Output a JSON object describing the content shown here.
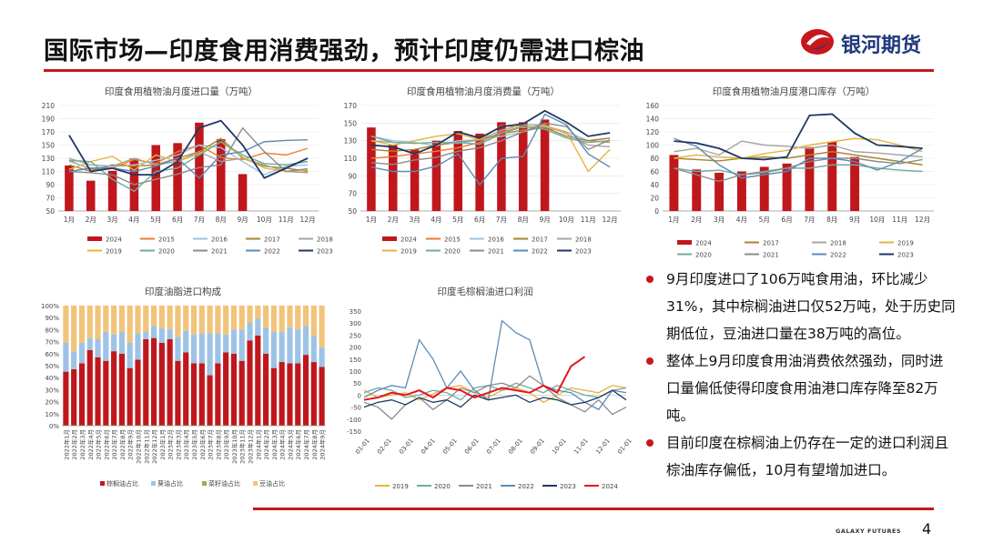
{
  "header": {
    "title": "国际市场—印度食用消费强劲，预计印度仍需进口棕油",
    "brand": "银河期货",
    "footer_brand": "GALAXY FUTURES",
    "page_number": "4"
  },
  "colors": {
    "accent": "#c8161d",
    "brand_blue": "#1f3a7a"
  },
  "bullets": [
    "9月印度进口了106万吨食用油，环比减少31%，其中棕榈油进口仅52万吨，处于历史同期低位，豆油进口量在38万吨的高位。",
    "整体上9月印度食用油消费依然强劲，同时进口量偏低使得印度食用油港口库存降至82万吨。",
    "目前印度在棕榈油上仍存在一定的进口利润且棕油库存偏低，10月有望增加进口。"
  ],
  "chart_data": [
    {
      "type": "bar",
      "title": "印度食用植物油月度进口量（万吨）",
      "categories": [
        "1月",
        "2月",
        "3月",
        "4月",
        "5月",
        "6月",
        "7月",
        "8月",
        "9月",
        "10月",
        "11月",
        "12月"
      ],
      "ylim": [
        50,
        210
      ],
      "yticks": [
        "50",
        "70",
        "90",
        "110",
        "130",
        "150",
        "170",
        "190",
        "210"
      ],
      "bar_series": {
        "name": "2024",
        "color": "#c0171d",
        "values": [
          119,
          96,
          111,
          130,
          150,
          153,
          184,
          159,
          106
        ]
      },
      "line_series": [
        {
          "name": "2015",
          "color": "#ed7d31",
          "values": [
            127,
            113,
            115,
            128,
            122,
            140,
            150,
            131,
            128,
            138,
            135,
            145
          ]
        },
        {
          "name": "2016",
          "color": "#9dc3e6",
          "values": [
            125,
            115,
            118,
            120,
            127,
            135,
            150,
            146,
            125,
            105,
            118,
            120
          ]
        },
        {
          "name": "2017",
          "color": "#a9862c",
          "values": [
            120,
            110,
            120,
            118,
            120,
            130,
            140,
            160,
            130,
            118,
            115,
            110
          ]
        },
        {
          "name": "2018",
          "color": "#a5a5a5",
          "values": [
            130,
            120,
            118,
            130,
            120,
            125,
            140,
            125,
            130,
            120,
            110,
            108
          ]
        },
        {
          "name": "2019",
          "color": "#e5b43c",
          "values": [
            113,
            125,
            133,
            112,
            135,
            125,
            137,
            155,
            132,
            115,
            110,
            112
          ]
        },
        {
          "name": "2020",
          "color": "#70ad9f",
          "values": [
            127,
            125,
            98,
            80,
            110,
            115,
            135,
            155,
            135,
            122,
            120,
            125
          ]
        },
        {
          "name": "2021",
          "color": "#8c8c8c",
          "values": [
            110,
            108,
            105,
            90,
            98,
            106,
            116,
            120,
            176,
            140,
            110,
            114
          ]
        },
        {
          "name": "2022",
          "color": "#5b8bb8",
          "values": [
            110,
            115,
            115,
            110,
            118,
            130,
            100,
            135,
            140,
            155,
            157,
            158
          ]
        },
        {
          "name": "2023",
          "color": "#1f3864",
          "values": [
            165,
            110,
            115,
            105,
            105,
            125,
            176,
            187,
            150,
            100,
            115,
            130
          ]
        }
      ],
      "legend": [
        "2024",
        "2015",
        "2016",
        "2017",
        "2018",
        "2019",
        "2020",
        "2021",
        "2022",
        "2023"
      ]
    },
    {
      "type": "bar",
      "title": "印度食用植物油月度消费量（万吨）",
      "categories": [
        "1月",
        "2月",
        "3月",
        "4月",
        "5月",
        "6月",
        "7月",
        "8月",
        "9月",
        "10月",
        "11月",
        "12月"
      ],
      "ylim": [
        50,
        170
      ],
      "yticks": [
        "50",
        "70",
        "90",
        "110",
        "130",
        "150",
        "170"
      ],
      "bar_series": {
        "name": "2024",
        "color": "#c0171d",
        "values": [
          145,
          125,
          120,
          130,
          141,
          138,
          151,
          151,
          154
        ]
      },
      "line_series": [
        {
          "name": "2015",
          "color": "#ed7d31",
          "values": [
            110,
            112,
            115,
            118,
            122,
            128,
            140,
            146,
            145,
            140,
            130,
            128
          ]
        },
        {
          "name": "2016",
          "color": "#9dc3e6",
          "values": [
            135,
            130,
            128,
            124,
            130,
            131,
            135,
            140,
            146,
            140,
            130,
            133
          ]
        },
        {
          "name": "2017",
          "color": "#a9862c",
          "values": [
            120,
            118,
            120,
            125,
            128,
            131,
            138,
            142,
            145,
            135,
            130,
            133
          ]
        },
        {
          "name": "2018",
          "color": "#a5a5a5",
          "values": [
            130,
            128,
            127,
            128,
            127,
            131,
            142,
            148,
            148,
            138,
            125,
            123
          ]
        },
        {
          "name": "2019",
          "color": "#e5b43c",
          "values": [
            130,
            125,
            130,
            135,
            138,
            131,
            147,
            145,
            147,
            140,
            95,
            120
          ]
        },
        {
          "name": "2020",
          "color": "#70ad9f",
          "values": [
            135,
            128,
            127,
            128,
            128,
            126,
            138,
            146,
            143,
            133,
            128,
            130
          ]
        },
        {
          "name": "2021",
          "color": "#8c8c8c",
          "values": [
            105,
            103,
            108,
            111,
            118,
            122,
            130,
            140,
            150,
            146,
            120,
            131
          ]
        },
        {
          "name": "2022",
          "color": "#5b8bb8",
          "values": [
            100,
            95,
            95,
            101,
            115,
            80,
            110,
            112,
            160,
            148,
            115,
            100
          ]
        },
        {
          "name": "2023",
          "color": "#1f3864",
          "values": [
            125,
            123,
            115,
            125,
            140,
            133,
            146,
            149,
            164,
            151,
            135,
            139
          ]
        }
      ],
      "legend": [
        "2024",
        "2015",
        "2016",
        "2017",
        "2018",
        "2019",
        "2020",
        "2021",
        "2022",
        "2023"
      ]
    },
    {
      "type": "bar",
      "title": "印度食用植物油月度港口库存（万吨）",
      "categories": [
        "1月",
        "2月",
        "3月",
        "4月",
        "5月",
        "6月",
        "7月",
        "8月",
        "9月",
        "10月",
        "11月",
        "12月"
      ],
      "ylim": [
        0,
        160
      ],
      "yticks": [
        "0",
        "20",
        "40",
        "60",
        "80",
        "100",
        "120",
        "140",
        "160"
      ],
      "bar_series": {
        "name": "2024",
        "color": "#c0171d",
        "values": [
          85,
          63,
          58,
          60,
          67,
          72,
          97,
          105,
          82
        ]
      },
      "line_series": [
        {
          "name": "2017",
          "color": "#a9862c",
          "values": [
            80,
            78,
            76,
            80,
            82,
            80,
            85,
            90,
            85,
            80,
            75,
            70
          ]
        },
        {
          "name": "2018",
          "color": "#a5a5a5",
          "values": [
            90,
            95,
            85,
            106,
            100,
            98,
            95,
            100,
            90,
            88,
            85,
            82
          ]
        },
        {
          "name": "2019",
          "color": "#e5b43c",
          "values": [
            80,
            85,
            82,
            80,
            87,
            92,
            100,
            105,
            110,
            108,
            100,
            90
          ]
        },
        {
          "name": "2020",
          "color": "#70ad9f",
          "values": [
            65,
            60,
            62,
            55,
            60,
            65,
            65,
            70,
            70,
            65,
            62,
            60
          ]
        },
        {
          "name": "2021",
          "color": "#8c8c8c",
          "values": [
            65,
            55,
            45,
            55,
            58,
            65,
            75,
            80,
            80,
            75,
            72,
            78
          ]
        },
        {
          "name": "2022",
          "color": "#5b8bb8",
          "values": [
            110,
            98,
            70,
            50,
            55,
            60,
            80,
            80,
            75,
            62,
            75,
            95
          ]
        },
        {
          "name": "2023",
          "color": "#1f3864",
          "values": [
            106,
            103,
            95,
            80,
            78,
            82,
            145,
            147,
            118,
            100,
            98,
            95
          ]
        }
      ],
      "legend": [
        "2024",
        "2017",
        "2018",
        "2019",
        "2020",
        "2021",
        "2022",
        "2023"
      ]
    },
    {
      "type": "bar",
      "stacked": true,
      "title": "印度油脂进口构成",
      "categories": [
        "2022年1月",
        "2022年2月",
        "2022年3月",
        "2022年4月",
        "2022年5月",
        "2022年6月",
        "2022年7月",
        "2022年8月",
        "2022年9月",
        "2022年10月",
        "2022年11月",
        "2022年12月",
        "2023年1月",
        "2023年2月",
        "2023年3月",
        "2023年4月",
        "2023年5月",
        "2023年6月",
        "2023年7月",
        "2023年8月",
        "2023年9月",
        "2023年10月",
        "2023年11月",
        "2023年12月",
        "2024年1月",
        "2024年2月",
        "2024年3月",
        "2024年4月",
        "2024年5月",
        "2024年6月",
        "2024年7月",
        "2024年8月",
        "2024年9月"
      ],
      "ylim": [
        0,
        100
      ],
      "yticks": [
        "0%",
        "10%",
        "20%",
        "30%",
        "40%",
        "50%",
        "60%",
        "70%",
        "80%",
        "90%",
        "100%"
      ],
      "series": [
        {
          "name": "棕榈油占比",
          "color": "#c0171d",
          "values": [
            45,
            47,
            52,
            63,
            57,
            54,
            62,
            60,
            48,
            55,
            72,
            73,
            69,
            72,
            54,
            61,
            52,
            52,
            42,
            52,
            61,
            60,
            54,
            71,
            75,
            60,
            48,
            53,
            52,
            52,
            59,
            53,
            49
          ]
        },
        {
          "name": "葵油占比",
          "color": "#9dc3e6",
          "values": [
            24,
            15,
            17,
            10,
            15,
            24,
            14,
            18,
            21,
            22,
            6,
            10,
            12,
            8,
            20,
            18,
            24,
            25,
            35,
            25,
            15,
            20,
            26,
            15,
            14,
            22,
            30,
            25,
            30,
            28,
            24,
            22,
            16
          ]
        },
        {
          "name": "菜籽油占比",
          "color": "#a4a65b",
          "values": [
            0,
            0,
            0,
            0,
            0,
            0,
            0,
            0,
            0,
            0,
            0,
            0,
            0,
            0,
            0,
            0,
            0,
            0,
            0,
            0,
            0,
            0,
            0,
            0,
            0,
            0,
            0,
            0,
            0,
            0,
            0,
            0,
            0
          ]
        },
        {
          "name": "豆油占比",
          "color": "#f2c37a",
          "values": [
            31,
            38,
            31,
            27,
            28,
            22,
            24,
            22,
            31,
            23,
            22,
            17,
            19,
            20,
            26,
            21,
            24,
            23,
            23,
            23,
            24,
            20,
            20,
            14,
            11,
            18,
            22,
            22,
            18,
            20,
            17,
            25,
            35
          ]
        }
      ],
      "legend": [
        "棕榈油占比",
        "葵油占比",
        "菜籽油占比",
        "豆油占比"
      ]
    },
    {
      "type": "line",
      "title": "印度毛棕榈油进口利润",
      "ylim": [
        -150,
        350
      ],
      "yticks": [
        "-150",
        "-100",
        "-50",
        "0",
        "50",
        "100",
        "150",
        "200",
        "250",
        "300",
        "350"
      ],
      "x_labels": [
        "01-01",
        "02-01",
        "03-01",
        "04-01",
        "05-01",
        "06-01",
        "07-01",
        "08-01",
        "09-01",
        "10-01",
        "11-01",
        "12-01",
        "01-01"
      ],
      "series": [
        {
          "name": "2019",
          "color": "#e5b43c",
          "values": [
            20,
            -10,
            0,
            10,
            -20,
            5,
            30,
            40,
            10,
            -10,
            20,
            30,
            10,
            -30,
            0,
            30,
            20,
            10,
            40,
            30
          ]
        },
        {
          "name": "2020",
          "color": "#70ad9f",
          "values": [
            10,
            30,
            20,
            -10,
            0,
            20,
            10,
            -20,
            30,
            40,
            20,
            50,
            30,
            10,
            40,
            20,
            0,
            -10,
            20,
            30
          ]
        },
        {
          "name": "2021",
          "color": "#8c8c8c",
          "values": [
            -30,
            -50,
            -100,
            -40,
            -10,
            -60,
            -20,
            30,
            10,
            40,
            50,
            30,
            80,
            40,
            -10,
            -40,
            -70,
            -20,
            -80,
            -50
          ]
        },
        {
          "name": "2022",
          "color": "#5b8bb8",
          "values": [
            -10,
            20,
            40,
            30,
            230,
            150,
            30,
            100,
            20,
            -20,
            310,
            260,
            230,
            40,
            20,
            10,
            -30,
            -60,
            20,
            10
          ]
        },
        {
          "name": "2023",
          "color": "#1f3864",
          "values": [
            -50,
            -30,
            -20,
            -40,
            -10,
            -30,
            -20,
            -50,
            0,
            -20,
            -10,
            0,
            -30,
            -10,
            -20,
            -40,
            -30,
            -10,
            20,
            -20
          ]
        },
        {
          "name": "2024",
          "color": "#e8141b",
          "values": [
            -20,
            -10,
            10,
            0,
            20,
            -10,
            30,
            20,
            -10,
            10,
            30,
            20,
            10,
            40,
            10,
            120,
            160
          ]
        }
      ],
      "legend": [
        "2019",
        "2020",
        "2021",
        "2022",
        "2023",
        "2024"
      ]
    }
  ]
}
